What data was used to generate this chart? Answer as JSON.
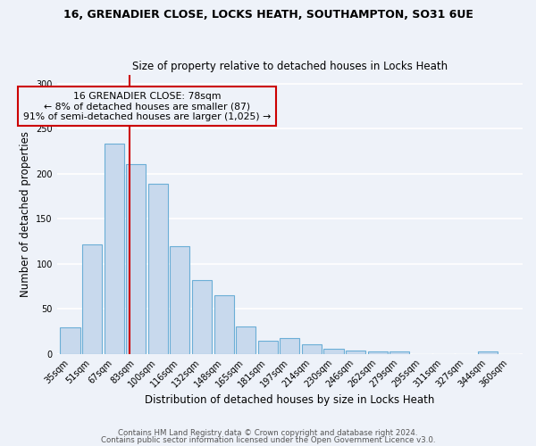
{
  "title": "16, GRENADIER CLOSE, LOCKS HEATH, SOUTHAMPTON, SO31 6UE",
  "subtitle": "Size of property relative to detached houses in Locks Heath",
  "xlabel": "Distribution of detached houses by size in Locks Heath",
  "ylabel": "Number of detached properties",
  "bar_labels": [
    "35sqm",
    "51sqm",
    "67sqm",
    "83sqm",
    "100sqm",
    "116sqm",
    "132sqm",
    "148sqm",
    "165sqm",
    "181sqm",
    "197sqm",
    "214sqm",
    "230sqm",
    "246sqm",
    "262sqm",
    "279sqm",
    "295sqm",
    "311sqm",
    "327sqm",
    "344sqm",
    "360sqm"
  ],
  "bar_values": [
    29,
    121,
    233,
    211,
    189,
    119,
    82,
    65,
    30,
    15,
    17,
    11,
    6,
    4,
    3,
    3,
    0,
    0,
    0,
    3,
    0
  ],
  "bar_color": "#c8d9ed",
  "bar_edge_color": "#6baed6",
  "annotation_box_text": "16 GRENADIER CLOSE: 78sqm\n← 8% of detached houses are smaller (87)\n91% of semi-detached houses are larger (1,025) →",
  "red_line_color": "#cc0000",
  "annotation_box_edge_color": "#cc0000",
  "ylim": [
    0,
    310
  ],
  "yticks": [
    0,
    50,
    100,
    150,
    200,
    250,
    300
  ],
  "footer1": "Contains HM Land Registry data © Crown copyright and database right 2024.",
  "footer2": "Contains public sector information licensed under the Open Government Licence v3.0.",
  "bg_color": "#eef2f9",
  "grid_color": "#ffffff",
  "property_sqm": 78
}
